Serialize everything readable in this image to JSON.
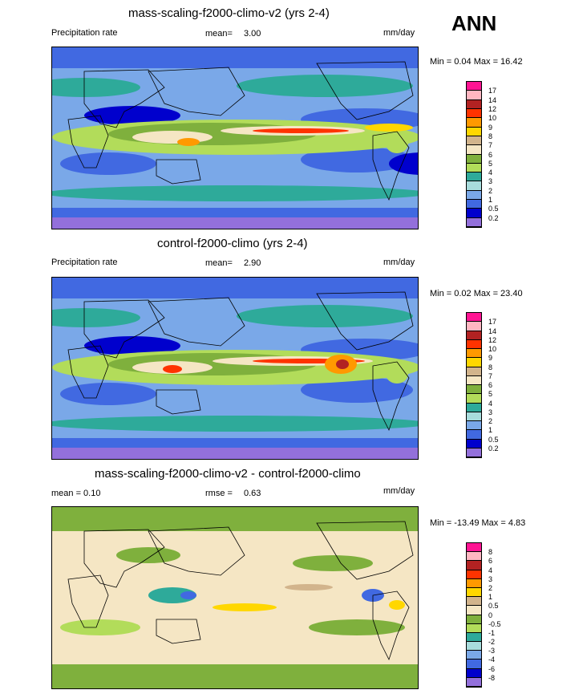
{
  "season": "ANN",
  "panels": [
    {
      "title": "mass-scaling-f2000-climo-v2 (yrs 2-4)",
      "left_label": "Precipitation rate",
      "center_label": "mean=",
      "center_value": "3.00",
      "units": "mm/day",
      "minmax": "Min =  0.04 Max =  16.42",
      "colorbar_labels": [
        "17",
        "14",
        "12",
        "10",
        "9",
        "8",
        "7",
        "6",
        "5",
        "4",
        "3",
        "2",
        "1",
        "0.5",
        "0.2"
      ],
      "colorbar_colors": [
        "#ff1493",
        "#ffb6c1",
        "#b22222",
        "#ff3300",
        "#ff9900",
        "#ffd700",
        "#d2b48c",
        "#f5e6c4",
        "#7fb03d",
        "#b2dc5a",
        "#2eaa9a",
        "#a8dcdc",
        "#7aa8e8",
        "#4169e1",
        "#0000cd",
        "#9370db"
      ]
    },
    {
      "title": "control-f2000-climo (yrs 2-4)",
      "left_label": "Precipitation rate",
      "center_label": "mean=",
      "center_value": "2.90",
      "units": "mm/day",
      "minmax": "Min =  0.02 Max =  23.40",
      "colorbar_labels": [
        "17",
        "14",
        "12",
        "10",
        "9",
        "8",
        "7",
        "6",
        "5",
        "4",
        "3",
        "2",
        "1",
        "0.5",
        "0.2"
      ],
      "colorbar_colors": [
        "#ff1493",
        "#ffb6c1",
        "#b22222",
        "#ff3300",
        "#ff9900",
        "#ffd700",
        "#d2b48c",
        "#f5e6c4",
        "#7fb03d",
        "#b2dc5a",
        "#2eaa9a",
        "#a8dcdc",
        "#7aa8e8",
        "#4169e1",
        "#0000cd",
        "#9370db"
      ]
    },
    {
      "title": "mass-scaling-f2000-climo-v2 - control-f2000-climo",
      "left_label": "mean =   0.10",
      "center_label": "rmse =",
      "center_value": "0.63",
      "units": "mm/day",
      "minmax": "Min = -13.49 Max =   4.83",
      "colorbar_labels": [
        "8",
        "6",
        "4",
        "3",
        "2",
        "1",
        "0.5",
        "0",
        "-0.5",
        "-1",
        "-2",
        "-3",
        "-4",
        "-6",
        "-8"
      ],
      "colorbar_colors": [
        "#ff1493",
        "#ffb6c1",
        "#b22222",
        "#ff3300",
        "#ff9900",
        "#ffd700",
        "#d2b48c",
        "#f5e6c4",
        "#7fb03d",
        "#b2dc5a",
        "#2eaa9a",
        "#a8dcdc",
        "#7aa8e8",
        "#4169e1",
        "#0000cd",
        "#9370db"
      ]
    }
  ],
  "chart_data": [
    {
      "type": "heatmap",
      "title": "mass-scaling-f2000-climo-v2 (yrs 2-4)",
      "mean": 3.0,
      "min": 0.04,
      "max": 16.42,
      "units": "mm/day",
      "levels": [
        0.2,
        0.5,
        1,
        2,
        3,
        4,
        5,
        6,
        7,
        8,
        9,
        10,
        12,
        14,
        17
      ]
    },
    {
      "type": "heatmap",
      "title": "control-f2000-climo (yrs 2-4)",
      "mean": 2.9,
      "min": 0.02,
      "max": 23.4,
      "units": "mm/day",
      "levels": [
        0.2,
        0.5,
        1,
        2,
        3,
        4,
        5,
        6,
        7,
        8,
        9,
        10,
        12,
        14,
        17
      ]
    },
    {
      "type": "heatmap",
      "title": "mass-scaling-f2000-climo-v2 - control-f2000-climo",
      "mean": 0.1,
      "rmse": 0.63,
      "min": -13.49,
      "max": 4.83,
      "units": "mm/day",
      "levels": [
        -8,
        -6,
        -4,
        -3,
        -2,
        -1,
        -0.5,
        0,
        0.5,
        1,
        2,
        3,
        4,
        6,
        8
      ]
    }
  ]
}
